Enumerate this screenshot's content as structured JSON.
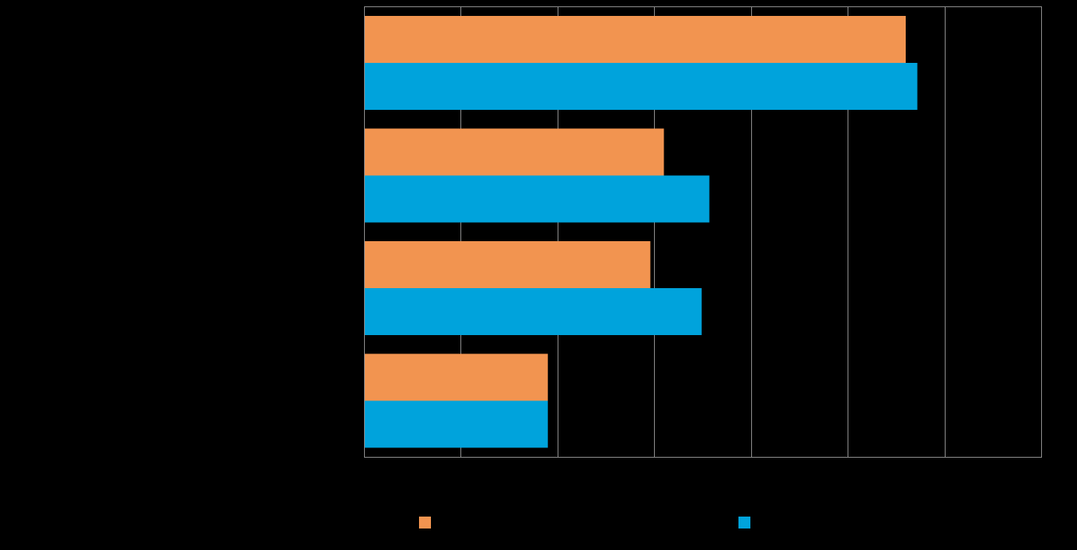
{
  "chart_data": {
    "type": "bar",
    "orientation": "horizontal",
    "categories": [
      "",
      "",
      "",
      ""
    ],
    "series": [
      {
        "color": "#F29450",
        "values": [
          28.0,
          15.5,
          14.8,
          9.5
        ]
      },
      {
        "color": "#00A3DC",
        "values": [
          28.6,
          17.85,
          17.45,
          9.5
        ]
      }
    ],
    "xlim": [
      0,
      35
    ],
    "grid": true,
    "legend_position": "bottom",
    "title": "",
    "xlabel": "",
    "ylabel": ""
  },
  "colors": {
    "background": "#000000",
    "gridline": "#8C8C8C",
    "orange": "#F29450",
    "blue": "#00A3DC"
  }
}
